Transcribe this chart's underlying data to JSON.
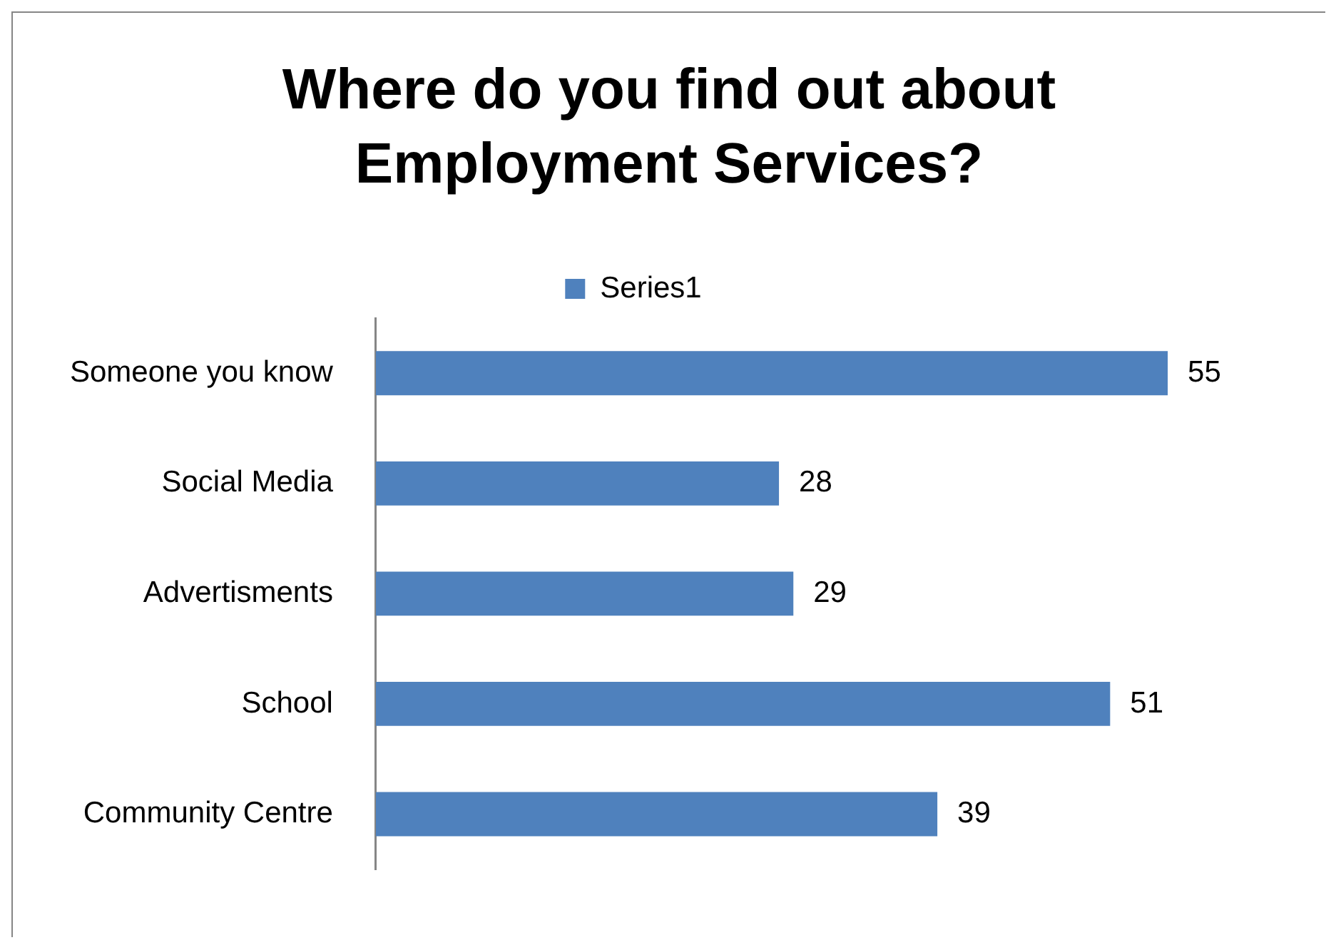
{
  "chart_data": {
    "type": "bar",
    "orientation": "horizontal",
    "title": "Where do you find out about Employment Services?",
    "categories": [
      "Someone you know",
      "Social Media",
      "Advertisments",
      "School",
      "Community Centre"
    ],
    "series": [
      {
        "name": "Series1",
        "color": "#4f81bd",
        "values": [
          55,
          28,
          29,
          51,
          39
        ]
      }
    ],
    "data_labels": true,
    "legend": "top",
    "tick_labels": "y"
  }
}
